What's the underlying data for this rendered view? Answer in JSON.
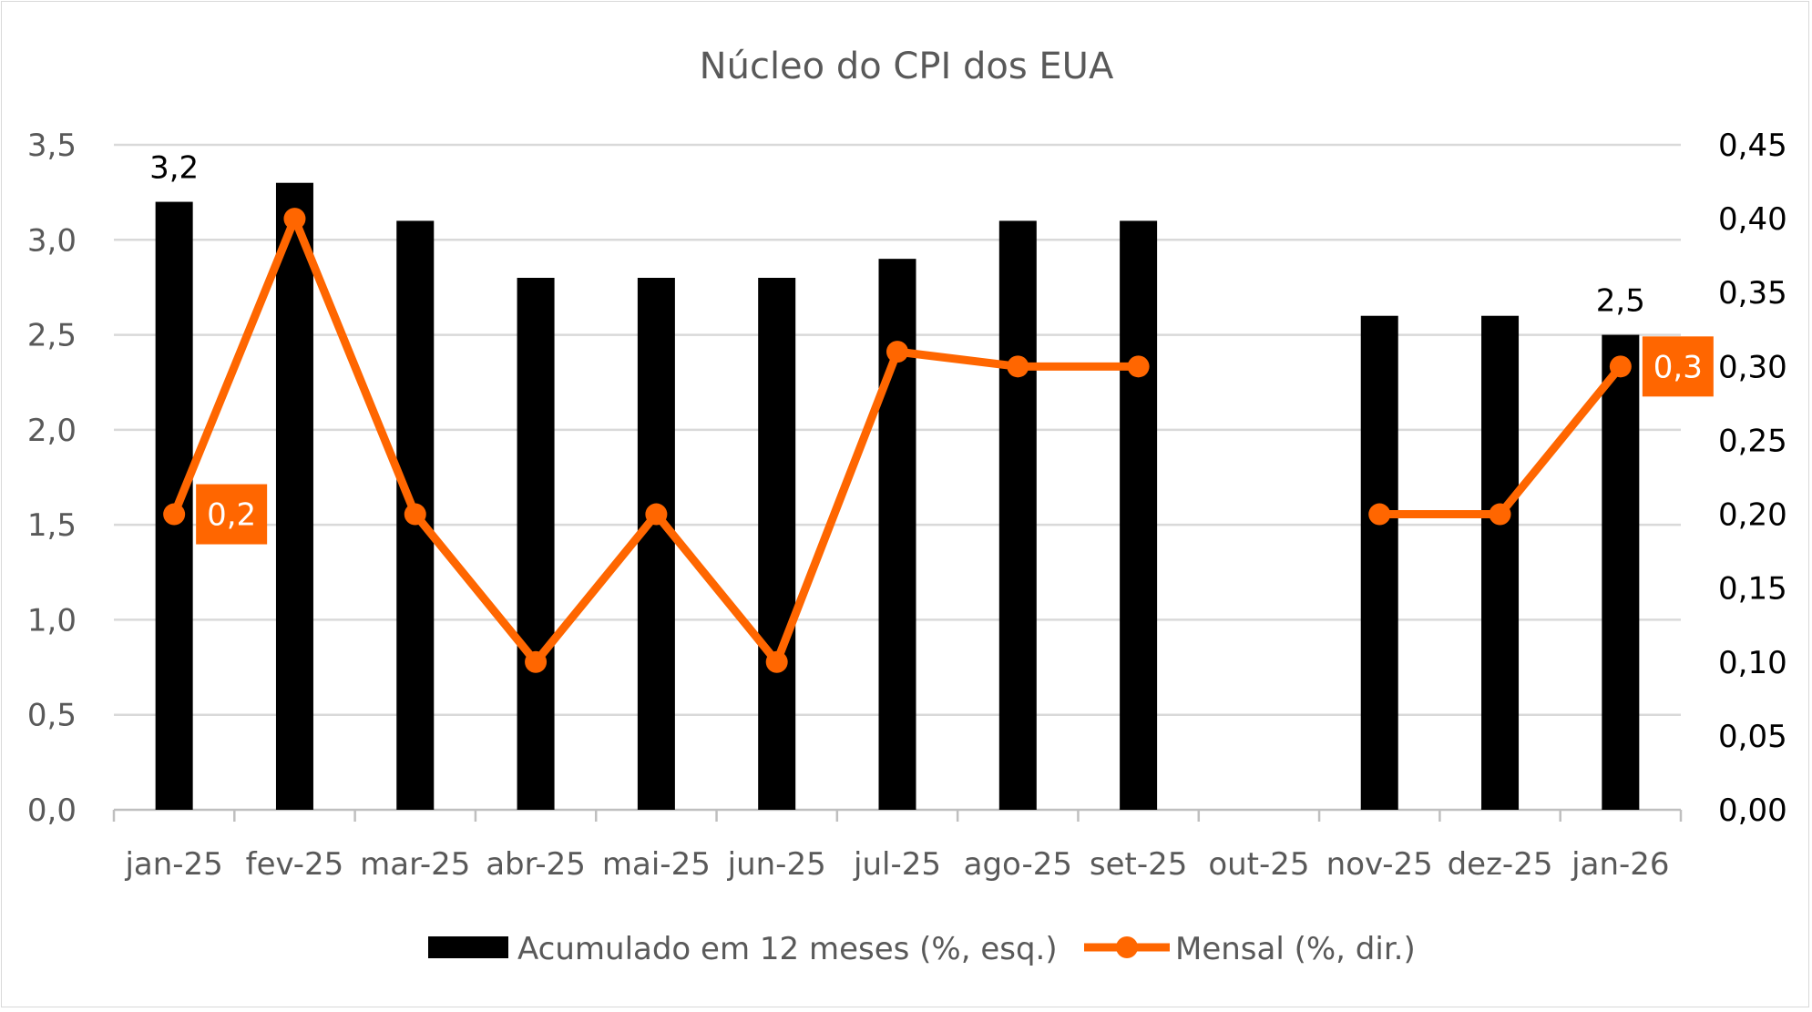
{
  "chart_data": {
    "type": "bar+line",
    "title": "Núcleo do CPI dos EUA",
    "categories": [
      "jan-25",
      "fev-25",
      "mar-25",
      "abr-25",
      "mai-25",
      "jun-25",
      "jul-25",
      "ago-25",
      "set-25",
      "out-25",
      "nov-25",
      "dez-25",
      "jan-26"
    ],
    "series": [
      {
        "name": "Acumulado em 12 meses (%, esq.)",
        "type": "bar",
        "axis": "left",
        "color": "#000000",
        "values": [
          3.2,
          3.3,
          3.1,
          2.8,
          2.8,
          2.8,
          2.9,
          3.1,
          3.1,
          null,
          2.6,
          2.6,
          2.5
        ],
        "data_labels": {
          "0": "3,2",
          "12": "2,5"
        }
      },
      {
        "name": "Mensal (%, dir.)",
        "type": "line",
        "axis": "right",
        "color": "#FF6600",
        "values": [
          0.2,
          0.4,
          0.2,
          0.1,
          0.2,
          0.1,
          0.31,
          0.3,
          0.3,
          null,
          0.2,
          0.2,
          0.3
        ],
        "data_labels": {
          "0": "0,2",
          "12": "0,3"
        }
      }
    ],
    "y_left": {
      "range": [
        0,
        3.5
      ],
      "ticks": [
        "0,0",
        "0,5",
        "1,0",
        "1,5",
        "2,0",
        "2,5",
        "3,0",
        "3,5"
      ]
    },
    "y_right": {
      "range": [
        0,
        0.45
      ],
      "ticks": [
        "0,00",
        "0,05",
        "0,10",
        "0,15",
        "0,20",
        "0,25",
        "0,30",
        "0,35",
        "0,40",
        "0,45"
      ]
    },
    "grid": true,
    "legend_position": "bottom"
  }
}
